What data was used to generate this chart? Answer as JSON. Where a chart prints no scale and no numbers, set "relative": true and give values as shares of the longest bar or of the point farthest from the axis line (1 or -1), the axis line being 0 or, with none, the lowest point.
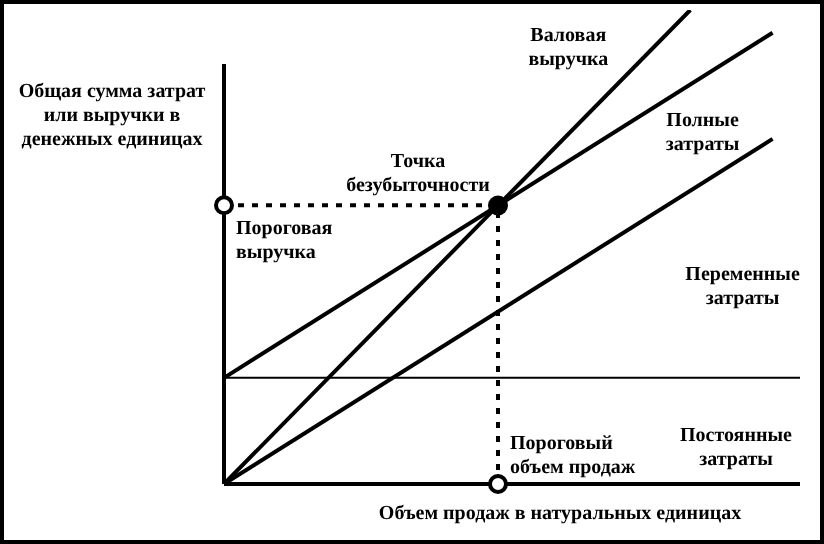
{
  "chart_data": {
    "type": "line",
    "relative": true,
    "xlabel": "Объем продаж в натуральных единицах",
    "ylabel": "Общая сумма затрат или выручки в денежных единицах",
    "marker": "none",
    "line_style": "solid",
    "categories": [
      null,
      null,
      null,
      null,
      null,
      null,
      null,
      null,
      null,
      null,
      null,
      null,
      null,
      null,
      null,
      null,
      null,
      null,
      null,
      null,
      null,
      null
    ],
    "series": [
      {
        "name": "Валовая выручка",
        "color": "#000000",
        "values": [
          0,
          null,
          null,
          null,
          null,
          null,
          null,
          null,
          null,
          null,
          null,
          null,
          null,
          null,
          null,
          null,
          null,
          1,
          null,
          null,
          null,
          null
        ]
      },
      {
        "name": "Полные затраты",
        "color": "#000000",
        "values": [
          0.224,
          null,
          null,
          null,
          null,
          null,
          null,
          null,
          null,
          null,
          null,
          null,
          null,
          null,
          null,
          null,
          null,
          null,
          null,
          null,
          0.952,
          null
        ]
      },
      {
        "name": "Переменные затраты",
        "color": "#000000",
        "values": [
          0,
          null,
          null,
          null,
          null,
          null,
          null,
          null,
          null,
          null,
          null,
          null,
          null,
          null,
          null,
          null,
          null,
          null,
          null,
          null,
          0.728,
          null
        ]
      },
      {
        "name": "Постоянные затраты",
        "color": "#000000",
        "values": [
          0.224,
          null,
          null,
          null,
          null,
          null,
          null,
          null,
          null,
          null,
          null,
          null,
          null,
          null,
          null,
          null,
          null,
          null,
          null,
          null,
          null,
          0.224
        ]
      }
    ],
    "ref_lines": [
      {
        "axis": "y",
        "value": 0.588,
        "label": "Пороговая выручка",
        "line_style": "dashed",
        "color": "#000000"
      },
      {
        "axis": "x",
        "label": "Пороговый объем продаж",
        "line_style": "dashed",
        "color": "#000000"
      }
    ],
    "annotations": [
      "Точка безубыточности"
    ]
  }
}
